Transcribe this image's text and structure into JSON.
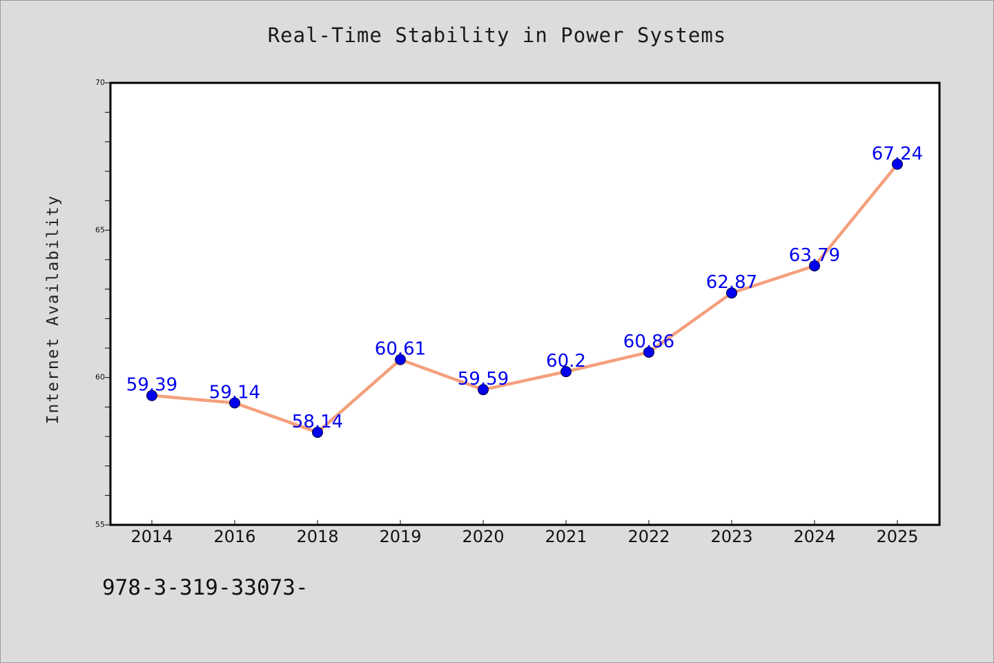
{
  "chart_data": {
    "type": "line",
    "title": "Real-Time Stability in Power Systems",
    "xlabel": "",
    "ylabel": "Internet Availability",
    "categories": [
      "2014",
      "2016",
      "2018",
      "2019",
      "2020",
      "2021",
      "2022",
      "2023",
      "2024",
      "2025"
    ],
    "series": [
      {
        "values": [
          59.39,
          59.14,
          58.14,
          60.61,
          59.59,
          60.2,
          60.86,
          62.87,
          63.79,
          67.24
        ],
        "data_labels": [
          "59.39",
          "59.14",
          "58.14",
          "60.61",
          "59.59",
          "60.2",
          "60.86",
          "62.87",
          "63.79",
          "67.24"
        ],
        "line_color": "#f4a07c",
        "marker_color": "#0000ee"
      }
    ],
    "ylim": [
      55,
      70
    ],
    "yticks": [
      55,
      60,
      65,
      70
    ],
    "ytick_labels": [
      "55",
      "60",
      "65",
      "70"
    ],
    "grid": false,
    "legend": "none"
  },
  "footer_text": "978-3-319-33073-",
  "colors": {
    "background": "#dcdcdc",
    "plot_area": "#ffffff",
    "line": "#f4a07c",
    "marker": "#0000ee",
    "data_label": "#0000ee"
  }
}
